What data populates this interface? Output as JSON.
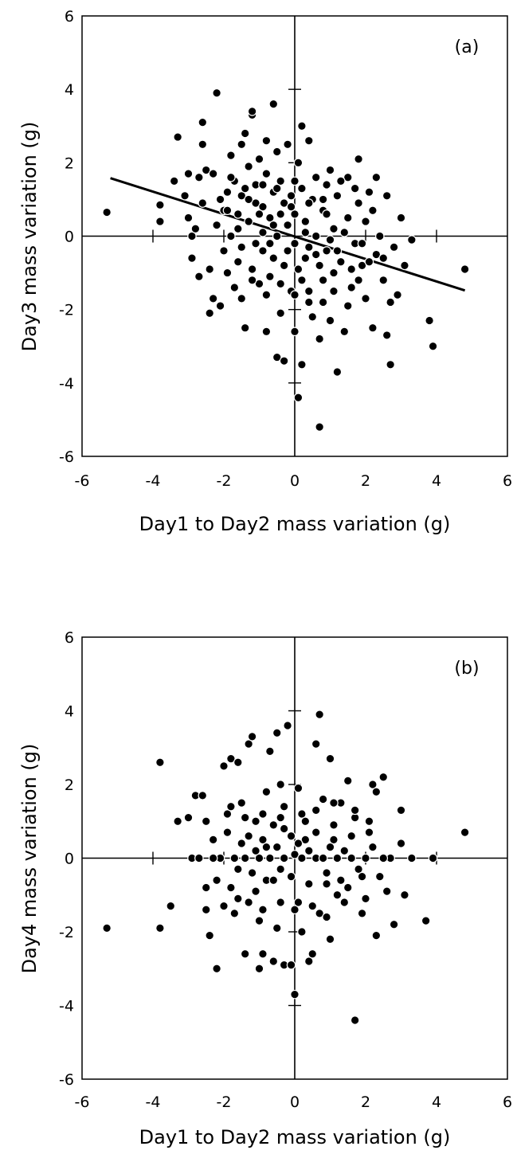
{
  "chart_data": [
    {
      "type": "scatter",
      "panel_label": "(a)",
      "xlabel": "Day1 to Day2 mass variation  (g)",
      "ylabel": "Day3 mass variation (g)",
      "xlim": [
        -6,
        6
      ],
      "ylim": [
        -6,
        6
      ],
      "xticks": [
        -6,
        -4,
        -2,
        0,
        2,
        4,
        6
      ],
      "yticks": [
        -6,
        -4,
        -2,
        0,
        2,
        4,
        6
      ],
      "grid": false,
      "trendline": {
        "x": [
          -5.2,
          4.8
        ],
        "y": [
          1.58,
          -1.48
        ]
      },
      "points": [
        [
          -5.3,
          0.65
        ],
        [
          -3.8,
          0.85
        ],
        [
          -3.8,
          0.4
        ],
        [
          -3.3,
          2.7
        ],
        [
          -3.4,
          1.5
        ],
        [
          -3.0,
          1.7
        ],
        [
          -2.9,
          0.0
        ],
        [
          -2.9,
          -0.6
        ],
        [
          -3.0,
          0.5
        ],
        [
          -2.7,
          1.6
        ],
        [
          -2.6,
          3.1
        ],
        [
          -2.6,
          2.5
        ],
        [
          -2.5,
          1.8
        ],
        [
          -2.4,
          -2.1
        ],
        [
          -2.3,
          -1.7
        ],
        [
          -2.2,
          3.9
        ],
        [
          -2.3,
          1.7
        ],
        [
          -2.1,
          1.0
        ],
        [
          -2.0,
          0.7
        ],
        [
          -2.0,
          -0.4
        ],
        [
          -1.9,
          1.2
        ],
        [
          -1.9,
          -1.0
        ],
        [
          -1.8,
          2.2
        ],
        [
          -1.8,
          0.0
        ],
        [
          -1.7,
          1.5
        ],
        [
          -1.7,
          -1.4
        ],
        [
          -1.6,
          0.6
        ],
        [
          -1.6,
          -0.7
        ],
        [
          -1.5,
          2.5
        ],
        [
          -1.5,
          1.1
        ],
        [
          -1.5,
          -0.3
        ],
        [
          -1.4,
          -2.5
        ],
        [
          -1.4,
          2.8
        ],
        [
          -1.3,
          1.9
        ],
        [
          -1.3,
          0.4
        ],
        [
          -1.2,
          -0.9
        ],
        [
          -1.2,
          3.3
        ],
        [
          -1.2,
          3.4
        ],
        [
          -1.1,
          1.4
        ],
        [
          -1.1,
          0.9
        ],
        [
          -1.0,
          -1.3
        ],
        [
          -1.0,
          2.1
        ],
        [
          -0.9,
          0.8
        ],
        [
          -0.9,
          -0.4
        ],
        [
          -0.8,
          2.6
        ],
        [
          -0.8,
          1.7
        ],
        [
          -0.8,
          -2.6
        ],
        [
          -0.7,
          0.5
        ],
        [
          -0.7,
          -1.1
        ],
        [
          -0.6,
          3.6
        ],
        [
          -0.6,
          1.2
        ],
        [
          -0.6,
          -0.6
        ],
        [
          -0.5,
          2.3
        ],
        [
          -0.5,
          -3.3
        ],
        [
          -0.5,
          0.0
        ],
        [
          -0.4,
          1.5
        ],
        [
          -0.4,
          -2.1
        ],
        [
          -0.3,
          0.9
        ],
        [
          -0.3,
          -0.8
        ],
        [
          -0.3,
          -3.4
        ],
        [
          -0.2,
          2.5
        ],
        [
          -0.2,
          0.3
        ],
        [
          -0.1,
          -1.5
        ],
        [
          -0.1,
          1.1
        ],
        [
          0.0,
          0.6
        ],
        [
          0.0,
          -0.2
        ],
        [
          0.0,
          -2.6
        ],
        [
          0.1,
          2.0
        ],
        [
          0.1,
          -0.9
        ],
        [
          0.1,
          -4.4
        ],
        [
          0.2,
          3.0
        ],
        [
          0.2,
          1.3
        ],
        [
          0.2,
          -3.5
        ],
        [
          0.3,
          0.4
        ],
        [
          0.3,
          -0.6
        ],
        [
          0.4,
          2.6
        ],
        [
          0.4,
          -1.8
        ],
        [
          0.5,
          1.0
        ],
        [
          0.5,
          -2.2
        ],
        [
          0.6,
          0.0
        ],
        [
          0.6,
          1.6
        ],
        [
          0.7,
          -5.2
        ],
        [
          0.7,
          -2.8
        ],
        [
          0.8,
          0.7
        ],
        [
          0.8,
          -1.2
        ],
        [
          0.9,
          1.4
        ],
        [
          0.9,
          -0.4
        ],
        [
          1.0,
          -2.3
        ],
        [
          1.0,
          1.8
        ],
        [
          1.1,
          0.2
        ],
        [
          1.1,
          -1.0
        ],
        [
          1.2,
          -3.7
        ],
        [
          1.2,
          1.1
        ],
        [
          1.3,
          -0.7
        ],
        [
          1.4,
          -2.6
        ],
        [
          1.5,
          0.5
        ],
        [
          1.5,
          1.6
        ],
        [
          1.6,
          -1.4
        ],
        [
          1.7,
          -0.2
        ],
        [
          1.8,
          2.1
        ],
        [
          1.8,
          0.9
        ],
        [
          1.9,
          -0.8
        ],
        [
          2.0,
          -1.7
        ],
        [
          2.0,
          0.4
        ],
        [
          2.1,
          1.2
        ],
        [
          2.2,
          -2.5
        ],
        [
          2.3,
          1.6
        ],
        [
          2.3,
          -0.5
        ],
        [
          2.4,
          0.0
        ],
        [
          2.5,
          -1.2
        ],
        [
          2.6,
          -2.7
        ],
        [
          2.6,
          1.1
        ],
        [
          2.7,
          -1.8
        ],
        [
          2.7,
          -3.5
        ],
        [
          2.8,
          -0.3
        ],
        [
          2.9,
          -1.6
        ],
        [
          3.0,
          0.5
        ],
        [
          3.1,
          -0.8
        ],
        [
          3.3,
          -0.1
        ],
        [
          3.8,
          -2.3
        ],
        [
          3.9,
          -3.0
        ],
        [
          4.8,
          -0.9
        ],
        [
          -2.2,
          0.3
        ],
        [
          -1.8,
          1.6
        ],
        [
          -1.6,
          0.2
        ],
        [
          -1.3,
          1.0
        ],
        [
          -1.1,
          -0.2
        ],
        [
          -0.9,
          0.1
        ],
        [
          -0.7,
          -0.2
        ],
        [
          -0.4,
          0.6
        ],
        [
          -0.2,
          -0.4
        ],
        [
          0.0,
          1.5
        ],
        [
          0.2,
          -1.2
        ],
        [
          0.4,
          -0.3
        ],
        [
          0.6,
          -0.5
        ],
        [
          0.9,
          0.6
        ],
        [
          1.2,
          -0.4
        ],
        [
          1.4,
          0.1
        ],
        [
          1.6,
          -0.9
        ],
        [
          1.9,
          -0.2
        ],
        [
          -1.0,
          0.6
        ],
        [
          -0.6,
          0.3
        ],
        [
          0.3,
          0.1
        ],
        [
          0.7,
          -0.8
        ],
        [
          1.0,
          -0.1
        ],
        [
          -2.4,
          -0.9
        ],
        [
          -2.7,
          -1.1
        ],
        [
          -2.1,
          -1.9
        ],
        [
          -1.5,
          -1.7
        ],
        [
          -1.2,
          -1.2
        ],
        [
          -0.8,
          -1.6
        ],
        [
          -0.4,
          -1.3
        ],
        [
          0.0,
          -1.6
        ],
        [
          0.4,
          -1.5
        ],
        [
          0.8,
          -1.8
        ],
        [
          1.1,
          -1.5
        ],
        [
          1.5,
          -1.9
        ],
        [
          1.8,
          -1.2
        ],
        [
          2.1,
          -0.7
        ],
        [
          2.5,
          -0.6
        ],
        [
          2.2,
          0.7
        ],
        [
          1.7,
          1.3
        ],
        [
          1.3,
          1.5
        ],
        [
          0.8,
          1.0
        ],
        [
          0.4,
          0.9
        ],
        [
          -0.1,
          0.8
        ],
        [
          -0.5,
          1.3
        ],
        [
          -0.9,
          1.4
        ],
        [
          -1.4,
          1.3
        ],
        [
          -1.9,
          0.7
        ],
        [
          -2.6,
          0.9
        ],
        [
          -2.8,
          0.2
        ],
        [
          -3.1,
          1.1
        ]
      ]
    },
    {
      "type": "scatter",
      "panel_label": "(b)",
      "xlabel": "Day1 to Day2 mass variation (g)",
      "ylabel": "Day4 mass variation (g)",
      "xlim": [
        -6,
        6
      ],
      "ylim": [
        -6,
        6
      ],
      "xticks": [
        -6,
        -4,
        -2,
        0,
        2,
        4,
        6
      ],
      "yticks": [
        -6,
        -4,
        -2,
        0,
        2,
        4,
        6
      ],
      "grid": false,
      "points": [
        [
          -5.3,
          -1.9
        ],
        [
          -3.8,
          2.6
        ],
        [
          -3.8,
          -1.9
        ],
        [
          -3.5,
          -1.3
        ],
        [
          -3.3,
          1.0
        ],
        [
          -3.0,
          1.1
        ],
        [
          -2.9,
          0.0
        ],
        [
          -2.8,
          1.7
        ],
        [
          -2.6,
          1.7
        ],
        [
          -2.5,
          -1.4
        ],
        [
          -2.4,
          -2.1
        ],
        [
          -2.5,
          1.0
        ],
        [
          -2.3,
          0.5
        ],
        [
          -2.2,
          -3.0
        ],
        [
          -2.1,
          0.0
        ],
        [
          -2.0,
          2.5
        ],
        [
          -1.9,
          1.2
        ],
        [
          -1.8,
          -0.8
        ],
        [
          -1.8,
          2.7
        ],
        [
          -1.6,
          2.6
        ],
        [
          -1.6,
          -1.1
        ],
        [
          -1.5,
          1.5
        ],
        [
          -1.5,
          0.4
        ],
        [
          -1.4,
          -2.6
        ],
        [
          -1.3,
          3.1
        ],
        [
          -1.2,
          -0.4
        ],
        [
          -1.2,
          3.3
        ],
        [
          -1.1,
          1.0
        ],
        [
          -1.0,
          -1.7
        ],
        [
          -1.0,
          -3.0
        ],
        [
          -0.9,
          0.5
        ],
        [
          -0.9,
          -2.6
        ],
        [
          -0.8,
          1.8
        ],
        [
          -0.8,
          -0.6
        ],
        [
          -0.7,
          2.9
        ],
        [
          -0.6,
          -2.8
        ],
        [
          -0.6,
          0.9
        ],
        [
          -0.5,
          -1.9
        ],
        [
          -0.5,
          3.4
        ],
        [
          -0.4,
          2.0
        ],
        [
          -0.4,
          -0.3
        ],
        [
          -0.3,
          -2.9
        ],
        [
          -0.3,
          1.4
        ],
        [
          -0.2,
          3.6
        ],
        [
          -0.1,
          0.6
        ],
        [
          -0.1,
          -2.9
        ],
        [
          0.0,
          -3.7
        ],
        [
          0.0,
          0.1
        ],
        [
          0.1,
          1.9
        ],
        [
          0.1,
          -1.2
        ],
        [
          0.2,
          -2.0
        ],
        [
          0.3,
          0.5
        ],
        [
          0.3,
          1.0
        ],
        [
          0.4,
          -2.8
        ],
        [
          0.5,
          -2.6
        ],
        [
          0.6,
          0.0
        ],
        [
          0.6,
          3.1
        ],
        [
          0.7,
          3.9
        ],
        [
          0.7,
          -1.5
        ],
        [
          0.8,
          1.6
        ],
        [
          0.9,
          -0.7
        ],
        [
          1.0,
          2.7
        ],
        [
          1.0,
          -2.2
        ],
        [
          1.1,
          0.9
        ],
        [
          1.2,
          -1.0
        ],
        [
          1.3,
          1.5
        ],
        [
          1.4,
          0.2
        ],
        [
          1.5,
          2.1
        ],
        [
          1.5,
          -0.8
        ],
        [
          1.7,
          -4.4
        ],
        [
          1.7,
          1.1
        ],
        [
          1.8,
          -0.3
        ],
        [
          2.0,
          -1.1
        ],
        [
          2.1,
          0.7
        ],
        [
          2.2,
          2.0
        ],
        [
          2.3,
          1.8
        ],
        [
          2.3,
          -2.1
        ],
        [
          2.4,
          -0.5
        ],
        [
          2.5,
          2.2
        ],
        [
          2.6,
          -0.9
        ],
        [
          2.7,
          0.0
        ],
        [
          2.8,
          -1.8
        ],
        [
          3.0,
          0.4
        ],
        [
          3.0,
          1.3
        ],
        [
          3.1,
          -1.0
        ],
        [
          3.3,
          0.0
        ],
        [
          3.7,
          -1.7
        ],
        [
          3.9,
          0.0
        ],
        [
          4.8,
          0.7
        ],
        [
          -2.7,
          0.0
        ],
        [
          -2.3,
          0.0
        ],
        [
          -1.7,
          0.0
        ],
        [
          -1.4,
          0.0
        ],
        [
          -1.0,
          0.0
        ],
        [
          -0.7,
          0.0
        ],
        [
          -0.3,
          0.0
        ],
        [
          0.2,
          0.0
        ],
        [
          0.8,
          0.0
        ],
        [
          1.2,
          0.0
        ],
        [
          1.6,
          0.0
        ],
        [
          2.0,
          0.0
        ],
        [
          2.5,
          0.0
        ],
        [
          -2.2,
          -0.6
        ],
        [
          -1.9,
          0.7
        ],
        [
          -1.6,
          -0.3
        ],
        [
          -1.3,
          0.6
        ],
        [
          -1.1,
          -0.9
        ],
        [
          -0.8,
          0.3
        ],
        [
          -0.6,
          -0.6
        ],
        [
          -0.3,
          0.8
        ],
        [
          -0.1,
          -0.5
        ],
        [
          0.1,
          0.4
        ],
        [
          0.4,
          -0.7
        ],
        [
          0.6,
          0.7
        ],
        [
          0.9,
          -0.4
        ],
        [
          1.1,
          0.5
        ],
        [
          1.3,
          -0.6
        ],
        [
          1.6,
          0.6
        ],
        [
          1.9,
          -0.5
        ],
        [
          2.2,
          0.3
        ],
        [
          -2.0,
          -1.3
        ],
        [
          -1.7,
          -1.5
        ],
        [
          -1.3,
          -1.2
        ],
        [
          -0.9,
          -1.4
        ],
        [
          -0.4,
          -1.2
        ],
        [
          0.0,
          -1.4
        ],
        [
          0.5,
          -1.3
        ],
        [
          0.9,
          -1.6
        ],
        [
          1.4,
          -1.2
        ],
        [
          1.9,
          -1.5
        ],
        [
          -1.8,
          1.4
        ],
        [
          -1.4,
          1.1
        ],
        [
          -0.9,
          1.2
        ],
        [
          -0.4,
          1.1
        ],
        [
          0.2,
          1.2
        ],
        [
          0.6,
          1.3
        ],
        [
          1.1,
          1.5
        ],
        [
          1.7,
          1.3
        ],
        [
          2.1,
          1.0
        ],
        [
          -1.1,
          0.2
        ],
        [
          -0.5,
          0.3
        ],
        [
          0.4,
          0.2
        ],
        [
          1.0,
          0.3
        ],
        [
          -2.5,
          -0.8
        ]
      ]
    }
  ]
}
